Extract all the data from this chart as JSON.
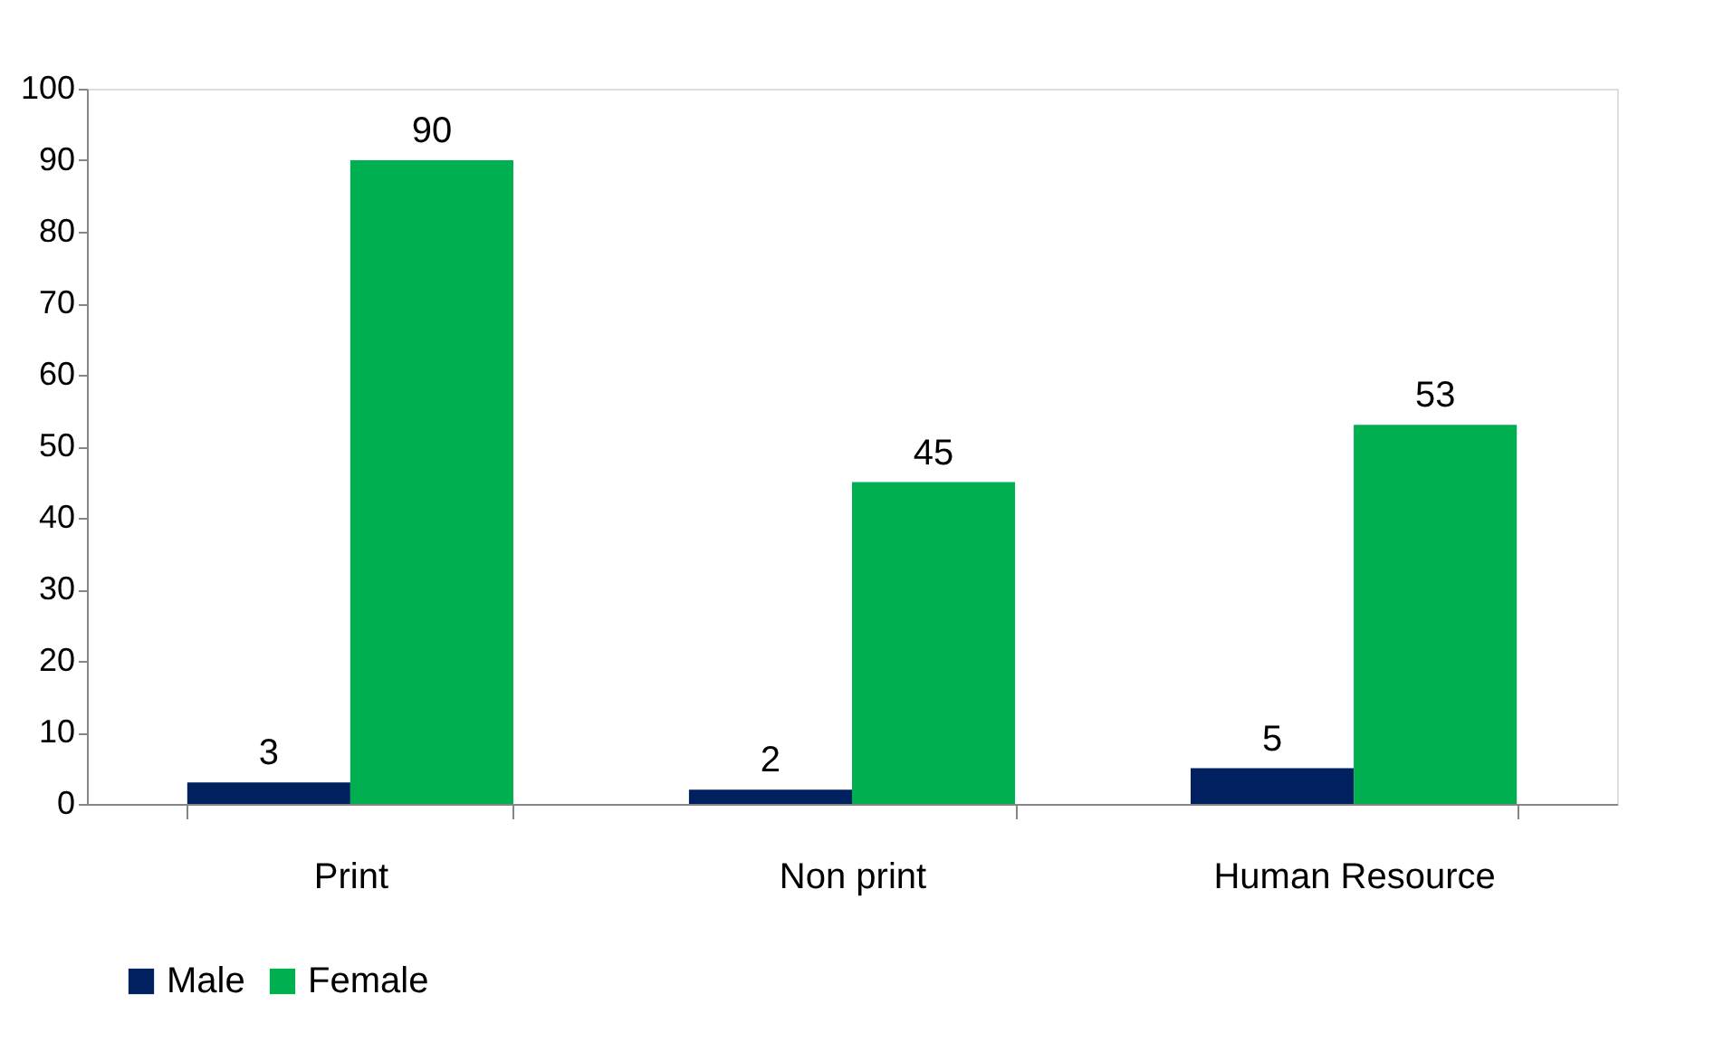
{
  "chart_data": {
    "type": "bar",
    "categories": [
      "Print",
      "Non print",
      "Human Resource"
    ],
    "series": [
      {
        "name": "Male",
        "color": "#002060",
        "values": [
          3,
          2,
          5
        ]
      },
      {
        "name": "Female",
        "color": "#00b050",
        "values": [
          90,
          45,
          53
        ]
      }
    ],
    "ylim": [
      0,
      100
    ],
    "yticks": [
      0,
      10,
      20,
      30,
      40,
      50,
      60,
      70,
      80,
      90,
      100
    ],
    "grid": false,
    "legend": "bottom",
    "data_labels": true
  }
}
